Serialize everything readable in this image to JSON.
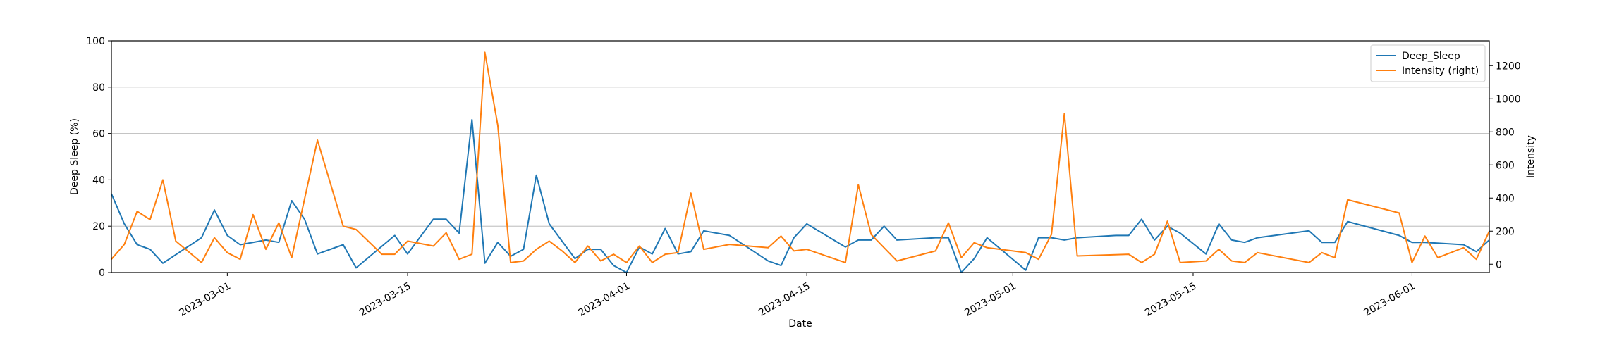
{
  "chart_data": {
    "type": "line",
    "title": "",
    "xlabel": "Date",
    "ylabel": "Deep Sleep (%)",
    "ylabel_right": "Intensity",
    "xlim": [
      "2023-02-20",
      "2023-06-06"
    ],
    "ylim": [
      0,
      100
    ],
    "ylim_right": [
      -50,
      1350
    ],
    "y_ticks": [
      0,
      20,
      40,
      60,
      80,
      100
    ],
    "y_right_ticks": [
      0,
      200,
      400,
      600,
      800,
      1000,
      1200
    ],
    "x_ticks": [
      "2023-03-01",
      "2023-03-15",
      "2023-04-01",
      "2023-04-15",
      "2023-05-01",
      "2023-05-15",
      "2023-06-01"
    ],
    "grid": "y-major",
    "legend": "top-right",
    "series": [
      {
        "name": "Deep_Sleep",
        "axis": "left",
        "color": "#1f77b4",
        "points": [
          [
            "2023-02-20",
            34
          ],
          [
            "2023-02-21",
            21
          ],
          [
            "2023-02-22",
            12
          ],
          [
            "2023-02-23",
            10
          ],
          [
            "2023-02-24",
            4
          ],
          [
            "2023-02-27",
            15
          ],
          [
            "2023-02-28",
            27
          ],
          [
            "2023-03-01",
            16
          ],
          [
            "2023-03-02",
            12
          ],
          [
            "2023-03-04",
            14
          ],
          [
            "2023-03-05",
            13
          ],
          [
            "2023-03-06",
            31
          ],
          [
            "2023-03-07",
            23
          ],
          [
            "2023-03-08",
            8
          ],
          [
            "2023-03-10",
            12
          ],
          [
            "2023-03-11",
            2
          ],
          [
            "2023-03-14",
            16
          ],
          [
            "2023-03-15",
            8
          ],
          [
            "2023-03-17",
            23
          ],
          [
            "2023-03-18",
            23
          ],
          [
            "2023-03-19",
            17
          ],
          [
            "2023-03-20",
            66
          ],
          [
            "2023-03-21",
            4
          ],
          [
            "2023-03-22",
            13
          ],
          [
            "2023-03-23",
            7
          ],
          [
            "2023-03-24",
            10
          ],
          [
            "2023-03-25",
            42
          ],
          [
            "2023-03-26",
            21
          ],
          [
            "2023-03-28",
            6
          ],
          [
            "2023-03-29",
            10
          ],
          [
            "2023-03-30",
            10
          ],
          [
            "2023-03-31",
            3
          ],
          [
            "2023-04-01",
            0
          ],
          [
            "2023-04-02",
            11
          ],
          [
            "2023-04-03",
            8
          ],
          [
            "2023-04-04",
            19
          ],
          [
            "2023-04-05",
            8
          ],
          [
            "2023-04-06",
            9
          ],
          [
            "2023-04-07",
            18
          ],
          [
            "2023-04-09",
            16
          ],
          [
            "2023-04-12",
            5
          ],
          [
            "2023-04-13",
            3
          ],
          [
            "2023-04-14",
            15
          ],
          [
            "2023-04-15",
            21
          ],
          [
            "2023-04-18",
            11
          ],
          [
            "2023-04-19",
            14
          ],
          [
            "2023-04-20",
            14
          ],
          [
            "2023-04-21",
            20
          ],
          [
            "2023-04-22",
            14
          ],
          [
            "2023-04-25",
            15
          ],
          [
            "2023-04-26",
            15
          ],
          [
            "2023-04-27",
            0
          ],
          [
            "2023-04-28",
            6
          ],
          [
            "2023-04-29",
            15
          ],
          [
            "2023-05-02",
            1
          ],
          [
            "2023-05-03",
            15
          ],
          [
            "2023-05-04",
            15
          ],
          [
            "2023-05-05",
            14
          ],
          [
            "2023-05-06",
            15
          ],
          [
            "2023-05-09",
            16
          ],
          [
            "2023-05-10",
            16
          ],
          [
            "2023-05-11",
            23
          ],
          [
            "2023-05-12",
            14
          ],
          [
            "2023-05-13",
            20
          ],
          [
            "2023-05-14",
            17
          ],
          [
            "2023-05-16",
            8
          ],
          [
            "2023-05-17",
            21
          ],
          [
            "2023-05-18",
            14
          ],
          [
            "2023-05-19",
            13
          ],
          [
            "2023-05-20",
            15
          ],
          [
            "2023-05-24",
            18
          ],
          [
            "2023-05-25",
            13
          ],
          [
            "2023-05-26",
            13
          ],
          [
            "2023-05-27",
            22
          ],
          [
            "2023-05-31",
            16
          ],
          [
            "2023-06-01",
            13
          ],
          [
            "2023-06-02",
            13
          ],
          [
            "2023-06-05",
            12
          ],
          [
            "2023-06-06",
            9
          ],
          [
            "2023-06-07",
            14
          ]
        ]
      },
      {
        "name": "Intensity (right)",
        "axis": "right",
        "color": "#ff7f0e",
        "points": [
          [
            "2023-02-20",
            30
          ],
          [
            "2023-02-21",
            120
          ],
          [
            "2023-02-22",
            320
          ],
          [
            "2023-02-23",
            270
          ],
          [
            "2023-02-24",
            510
          ],
          [
            "2023-02-25",
            140
          ],
          [
            "2023-02-27",
            10
          ],
          [
            "2023-02-28",
            160
          ],
          [
            "2023-03-01",
            70
          ],
          [
            "2023-03-02",
            30
          ],
          [
            "2023-03-03",
            300
          ],
          [
            "2023-03-04",
            90
          ],
          [
            "2023-03-05",
            250
          ],
          [
            "2023-03-06",
            40
          ],
          [
            "2023-03-08",
            750
          ],
          [
            "2023-03-10",
            230
          ],
          [
            "2023-03-11",
            210
          ],
          [
            "2023-03-13",
            60
          ],
          [
            "2023-03-14",
            60
          ],
          [
            "2023-03-15",
            140
          ],
          [
            "2023-03-17",
            110
          ],
          [
            "2023-03-18",
            190
          ],
          [
            "2023-03-19",
            30
          ],
          [
            "2023-03-20",
            60
          ],
          [
            "2023-03-21",
            1280
          ],
          [
            "2023-03-22",
            840
          ],
          [
            "2023-03-23",
            10
          ],
          [
            "2023-03-24",
            20
          ],
          [
            "2023-03-25",
            90
          ],
          [
            "2023-03-26",
            140
          ],
          [
            "2023-03-27",
            80
          ],
          [
            "2023-03-28",
            10
          ],
          [
            "2023-03-29",
            110
          ],
          [
            "2023-03-30",
            20
          ],
          [
            "2023-03-31",
            60
          ],
          [
            "2023-04-01",
            10
          ],
          [
            "2023-04-02",
            110
          ],
          [
            "2023-04-03",
            10
          ],
          [
            "2023-04-04",
            60
          ],
          [
            "2023-04-05",
            70
          ],
          [
            "2023-04-06",
            430
          ],
          [
            "2023-04-07",
            90
          ],
          [
            "2023-04-09",
            120
          ],
          [
            "2023-04-12",
            100
          ],
          [
            "2023-04-13",
            170
          ],
          [
            "2023-04-14",
            80
          ],
          [
            "2023-04-15",
            90
          ],
          [
            "2023-04-18",
            10
          ],
          [
            "2023-04-19",
            480
          ],
          [
            "2023-04-20",
            180
          ],
          [
            "2023-04-21",
            100
          ],
          [
            "2023-04-22",
            20
          ],
          [
            "2023-04-25",
            80
          ],
          [
            "2023-04-26",
            250
          ],
          [
            "2023-04-27",
            40
          ],
          [
            "2023-04-28",
            130
          ],
          [
            "2023-04-29",
            100
          ],
          [
            "2023-05-01",
            80
          ],
          [
            "2023-05-02",
            70
          ],
          [
            "2023-05-03",
            30
          ],
          [
            "2023-05-04",
            180
          ],
          [
            "2023-05-05",
            910
          ],
          [
            "2023-05-06",
            50
          ],
          [
            "2023-05-10",
            60
          ],
          [
            "2023-05-11",
            10
          ],
          [
            "2023-05-12",
            60
          ],
          [
            "2023-05-13",
            260
          ],
          [
            "2023-05-14",
            10
          ],
          [
            "2023-05-16",
            20
          ],
          [
            "2023-05-17",
            90
          ],
          [
            "2023-05-18",
            20
          ],
          [
            "2023-05-19",
            10
          ],
          [
            "2023-05-20",
            70
          ],
          [
            "2023-05-24",
            10
          ],
          [
            "2023-05-25",
            70
          ],
          [
            "2023-05-26",
            40
          ],
          [
            "2023-05-27",
            390
          ],
          [
            "2023-05-31",
            310
          ],
          [
            "2023-06-01",
            10
          ],
          [
            "2023-06-02",
            170
          ],
          [
            "2023-06-03",
            40
          ],
          [
            "2023-06-05",
            100
          ],
          [
            "2023-06-06",
            30
          ],
          [
            "2023-06-07",
            200
          ]
        ]
      }
    ]
  }
}
